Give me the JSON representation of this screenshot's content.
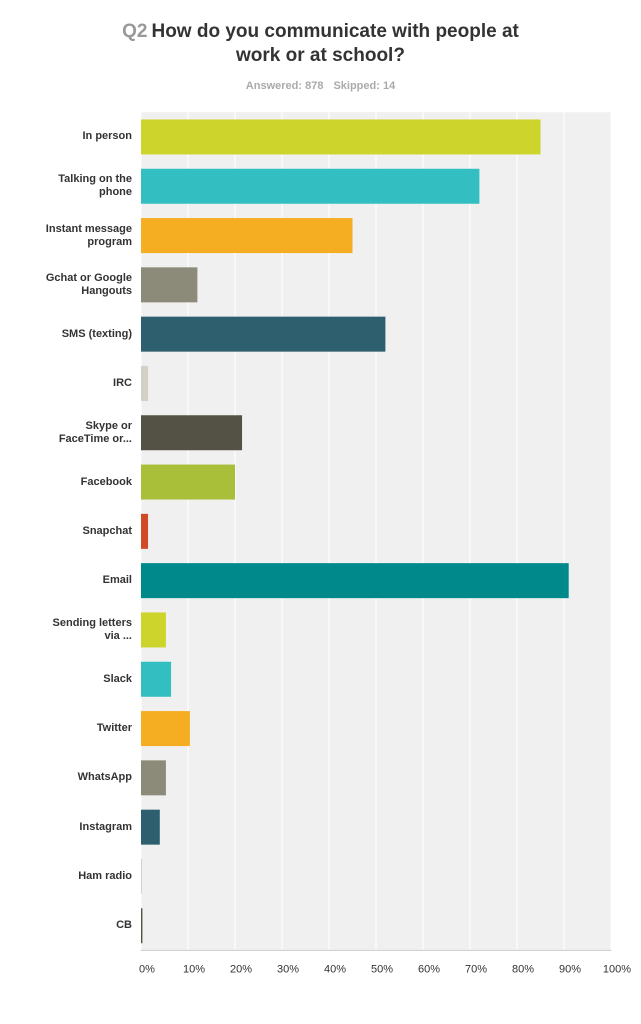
{
  "chart_data": {
    "type": "hbar",
    "question_number": "Q2",
    "title": "How do you communicate with people at work or at school?",
    "answered": "Answered: 878",
    "skipped": "Skipped: 14",
    "categories": [
      "In person",
      "Talking on the phone",
      "Instant message program",
      "Gchat or Google Hangouts",
      "SMS (texting)",
      "IRC",
      "Skype or FaceTime or...",
      "Facebook",
      "Snapchat",
      "Email",
      "Sending letters via ...",
      "Slack",
      "Twitter",
      "WhatsApp",
      "Instagram",
      "Ham radio",
      "CB"
    ],
    "values": [
      85,
      72,
      45,
      12,
      52,
      1.5,
      21.5,
      20,
      1.5,
      91,
      5.3,
      6.4,
      10.4,
      5.3,
      4,
      0.2,
      0.3
    ],
    "colors": [
      "#cdd42b",
      "#33bec1",
      "#f5ae22",
      "#8c8b7a",
      "#2e5f6f",
      "#d3d0c5",
      "#545245",
      "#a9bf3a",
      "#d04a25",
      "#00898b",
      "#cdd42b",
      "#33bec1",
      "#f5ae22",
      "#8c8b7a",
      "#2e5f6f",
      "#d3d0c5",
      "#545245"
    ],
    "xlim": [
      0,
      100
    ],
    "xticks": [
      {
        "value": 0,
        "label": "0%"
      },
      {
        "value": 10,
        "label": "10%"
      },
      {
        "value": 20,
        "label": "20%"
      },
      {
        "value": 30,
        "label": "30%"
      },
      {
        "value": 40,
        "label": "40%"
      },
      {
        "value": 50,
        "label": "50%"
      },
      {
        "value": 60,
        "label": "60%"
      },
      {
        "value": 70,
        "label": "70%"
      },
      {
        "value": 80,
        "label": "80%"
      },
      {
        "value": 90,
        "label": "90%"
      },
      {
        "value": 100,
        "label": "100%"
      }
    ],
    "grid": true
  }
}
